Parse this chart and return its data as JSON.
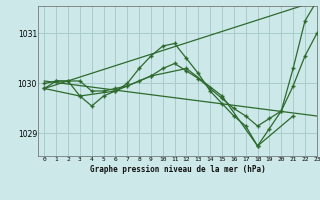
{
  "title": "Graphe pression niveau de la mer (hPa)",
  "background_color": "#cce8e8",
  "grid_color": "#aacccc",
  "line_color": "#2d6a2d",
  "series1": {
    "x": [
      0,
      1,
      2,
      3,
      4,
      5,
      6,
      7,
      8,
      9,
      10,
      11,
      12,
      13,
      14,
      15,
      16,
      17,
      18,
      19,
      20,
      21,
      22,
      23
    ],
    "y": [
      1029.9,
      1030.05,
      1030.05,
      1029.75,
      1029.55,
      1029.75,
      1029.85,
      1030.0,
      1030.3,
      1030.55,
      1030.75,
      1030.8,
      1030.5,
      1030.2,
      1029.85,
      1029.6,
      1029.35,
      1029.15,
      1028.75,
      1029.1,
      1029.45,
      1030.3,
      1031.25,
      1031.65
    ]
  },
  "series2": {
    "x": [
      0,
      1,
      2,
      3,
      4,
      5,
      6,
      7,
      8,
      9,
      10,
      11,
      12,
      13,
      14,
      15,
      16,
      17,
      18,
      19,
      20,
      21,
      22,
      23
    ],
    "y": [
      1030.0,
      1030.05,
      1030.05,
      1030.05,
      1029.85,
      1029.85,
      1029.9,
      1029.95,
      1030.05,
      1030.15,
      1030.3,
      1030.4,
      1030.25,
      1030.1,
      1029.9,
      1029.7,
      1029.5,
      1029.35,
      1029.15,
      1029.3,
      1029.45,
      1029.95,
      1030.55,
      1031.0
    ]
  },
  "series3": {
    "x": [
      0,
      3,
      6,
      9,
      12,
      15,
      18,
      21
    ],
    "y": [
      1029.9,
      1029.75,
      1029.85,
      1030.15,
      1030.3,
      1029.75,
      1028.75,
      1029.35
    ]
  },
  "diag_up": {
    "x": [
      0,
      23
    ],
    "y": [
      1029.9,
      1031.65
    ]
  },
  "diag_down": {
    "x": [
      0,
      23
    ],
    "y": [
      1030.05,
      1029.35
    ]
  },
  "xlim": [
    -0.5,
    23
  ],
  "ylim": [
    1028.55,
    1031.55
  ],
  "yticks": [
    1029,
    1030,
    1031
  ],
  "xticks": [
    0,
    1,
    2,
    3,
    4,
    5,
    6,
    7,
    8,
    9,
    10,
    11,
    12,
    13,
    14,
    15,
    16,
    17,
    18,
    19,
    20,
    21,
    22,
    23
  ]
}
